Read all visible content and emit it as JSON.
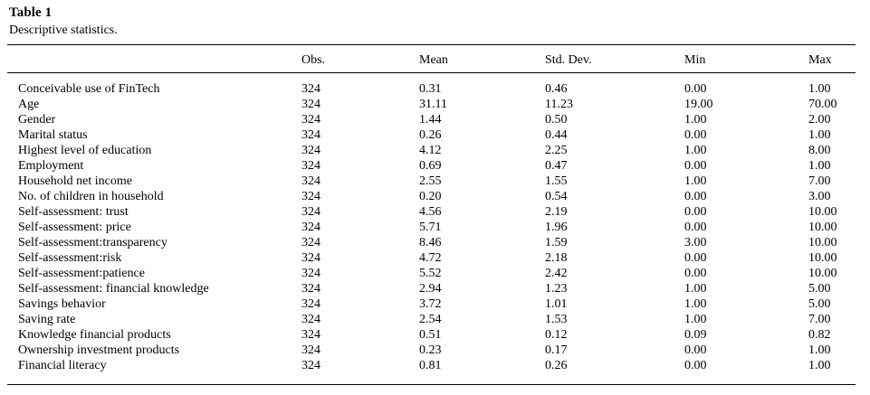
{
  "table": {
    "label": "Table 1",
    "caption": "Descriptive statistics.",
    "columns": [
      "",
      "Obs.",
      "Mean",
      "Std. Dev.",
      "Min",
      "Max"
    ],
    "rows": [
      [
        "Conceivable use of FinTech",
        "324",
        "0.31",
        "0.46",
        "0.00",
        "1.00"
      ],
      [
        "Age",
        "324",
        "31.11",
        "11.23",
        "19.00",
        "70.00"
      ],
      [
        "Gender",
        "324",
        "1.44",
        "0.50",
        "1.00",
        "2.00"
      ],
      [
        "Marital status",
        "324",
        "0.26",
        "0.44",
        "0.00",
        "1.00"
      ],
      [
        "Highest level of education",
        "324",
        "4.12",
        "2.25",
        "1.00",
        "8.00"
      ],
      [
        "Employment",
        "324",
        "0.69",
        "0.47",
        "0.00",
        "1.00"
      ],
      [
        "Household net income",
        "324",
        "2.55",
        "1.55",
        "1.00",
        "7.00"
      ],
      [
        "No. of children in household",
        "324",
        "0.20",
        "0.54",
        "0.00",
        "3.00"
      ],
      [
        "Self-assessment: trust",
        "324",
        "4.56",
        "2.19",
        "0.00",
        "10.00"
      ],
      [
        "Self-assessment: price",
        "324",
        "5.71",
        "1.96",
        "0.00",
        "10.00"
      ],
      [
        "Self-assessment:transparency",
        "324",
        "8.46",
        "1.59",
        "3.00",
        "10.00"
      ],
      [
        "Self-assessment:risk",
        "324",
        "4.72",
        "2.18",
        "0.00",
        "10.00"
      ],
      [
        "Self-assessment:patience",
        "324",
        "5.52",
        "2.42",
        "0.00",
        "10.00"
      ],
      [
        "Self-assessment: financial knowledge",
        "324",
        "2.94",
        "1.23",
        "1.00",
        "5.00"
      ],
      [
        "Savings behavior",
        "324",
        "3.72",
        "1.01",
        "1.00",
        "5.00"
      ],
      [
        "Saving rate",
        "324",
        "2.54",
        "1.53",
        "1.00",
        "7.00"
      ],
      [
        "Knowledge financial products",
        "324",
        "0.51",
        "0.12",
        "0.09",
        "0.82"
      ],
      [
        "Ownership investment products",
        "324",
        "0.23",
        "0.17",
        "0.00",
        "1.00"
      ],
      [
        "Financial literacy",
        "324",
        "0.81",
        "0.26",
        "0.00",
        "1.00"
      ]
    ]
  }
}
